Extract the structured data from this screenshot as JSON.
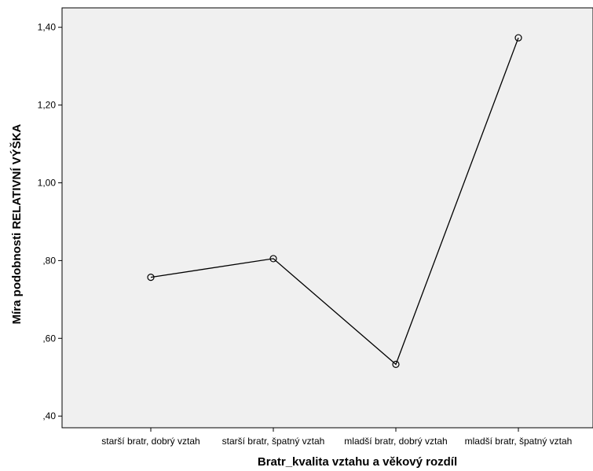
{
  "chart_data": {
    "type": "line",
    "title": "",
    "xlabel": "Bratr_kvalita vztahu a věkový rozdíl",
    "ylabel": "Míra podobnosti RELATIVNÍ VÝŠKA",
    "categories": [
      "starší bratr, dobrý vztah",
      "starší bratr, špatný vztah",
      "mladší bratr, dobrý vztah",
      "mladší bratr, špatný vztah"
    ],
    "values": [
      0.757,
      0.805,
      0.533,
      1.373
    ],
    "ylim": [
      0.37,
      1.45
    ],
    "yticks": [
      0.4,
      0.6,
      0.8,
      1.0,
      1.2,
      1.4
    ],
    "ytick_labels": [
      ",40",
      ",60",
      ",80",
      "1,00",
      "1,20",
      "1,40"
    ],
    "grid": false,
    "legend": "none",
    "markers": "open-circle",
    "colors": {
      "plot_background": "#f0f0f0",
      "line": "#000000",
      "axes": "#000000"
    }
  }
}
